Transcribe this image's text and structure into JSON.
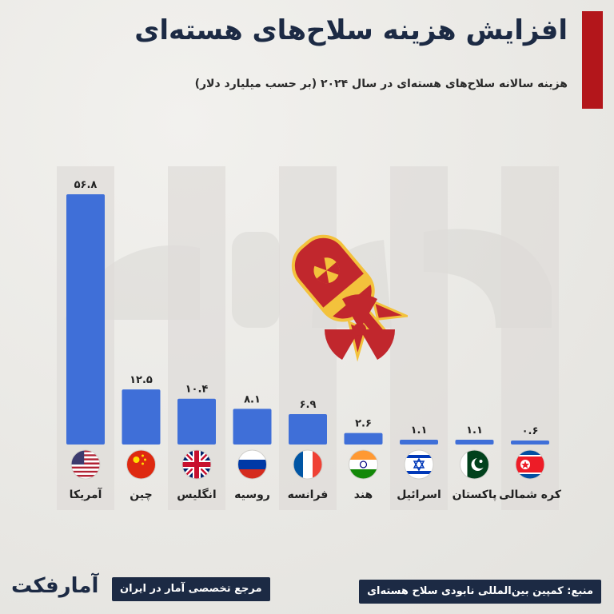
{
  "header": {
    "title": "افزایش هزینه سلاح‌های هسته‌ای",
    "subtitle": "هزینه سالانه سلاح‌های هسته‌ای در سال ۲۰۲۴ (بر حسب میلیارد دلار)"
  },
  "colors": {
    "accent": "#b3161b",
    "bar": "#3f6fd8",
    "navy": "#1c2a44",
    "column_bg": "#dedcd8"
  },
  "chart_data": {
    "type": "bar",
    "categories": [
      "آمریکا",
      "چین",
      "انگلیس",
      "روسیه",
      "فرانسه",
      "هند",
      "اسرائیل",
      "پاکستان",
      "کره شمالی"
    ],
    "values": [
      56.8,
      12.5,
      10.4,
      8.1,
      6.9,
      2.6,
      1.1,
      1.1,
      0.6
    ],
    "value_labels": [
      "۵۶.۸",
      "۱۲.۵",
      "۱۰.۴",
      "۸.۱",
      "۶.۹",
      "۲.۶",
      "۱.۱",
      "۱.۱",
      "۰.۶"
    ],
    "flags": [
      "us-flag",
      "china-flag",
      "uk-flag",
      "russia-flag",
      "france-flag",
      "india-flag",
      "israel-flag",
      "pakistan-flag",
      "north-korea-flag"
    ],
    "title": "هزینه سالانه سلاح‌های هسته‌ای در سال ۲۰۲۴ (بر حسب میلیارد دلار)",
    "xlabel": "",
    "ylabel": "",
    "ylim": [
      0,
      56.8
    ],
    "grid": false
  },
  "footer": {
    "source": "منبع: کمپین بین‌المللی نابودی سلاح هسته‌ای",
    "tagline": "مرجع تخصصی آمار در ایران",
    "logo_text": "آمارفکت"
  }
}
